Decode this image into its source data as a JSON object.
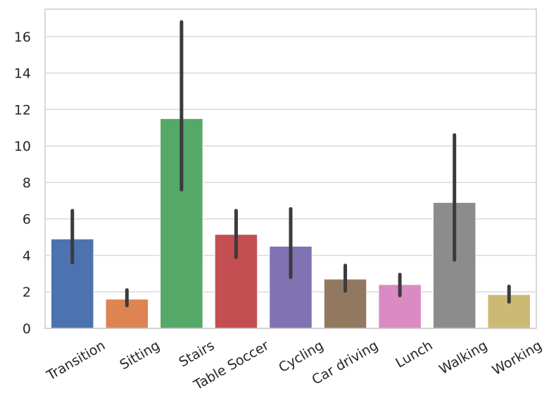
{
  "chart_data": {
    "type": "bar",
    "categories": [
      "Transition",
      "Sitting",
      "Stairs",
      "Table Soccer",
      "Cycling",
      "Car driving",
      "Lunch",
      "Walking",
      "Working"
    ],
    "values": [
      4.9,
      1.6,
      11.5,
      5.15,
      4.5,
      2.7,
      2.4,
      6.9,
      1.85
    ],
    "error_bars": [
      [
        3.6,
        6.45
      ],
      [
        1.25,
        2.1
      ],
      [
        7.6,
        16.8
      ],
      [
        3.9,
        6.45
      ],
      [
        2.8,
        6.55
      ],
      [
        2.05,
        3.45
      ],
      [
        1.8,
        2.95
      ],
      [
        3.75,
        10.6
      ],
      [
        1.45,
        2.3
      ]
    ],
    "colors": [
      "#4c72b0",
      "#dd8452",
      "#55a868",
      "#c44e52",
      "#8172b3",
      "#937860",
      "#da8bc3",
      "#8c8c8c",
      "#ccb974"
    ],
    "error_color": "#3b3b3b",
    "ylim": [
      0,
      17.5
    ],
    "yticks": [
      0,
      2,
      4,
      6,
      8,
      10,
      12,
      14,
      16
    ],
    "ytick_labels": [
      "0",
      "2",
      "4",
      "6",
      "8",
      "10",
      "12",
      "14",
      "16"
    ],
    "grid": true,
    "title": "",
    "xlabel": "",
    "ylabel": ""
  }
}
